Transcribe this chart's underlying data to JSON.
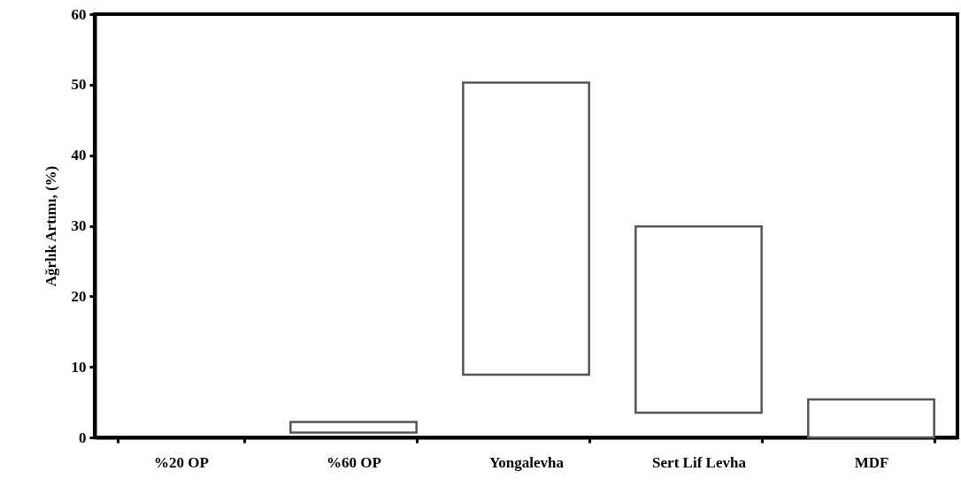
{
  "chart_data": {
    "type": "bar",
    "ylabel": "Ağrlık Artımı, (%)",
    "categories": [
      "%20 OP",
      "%60 OP",
      "Yongalevha",
      "Sert Lif Levha",
      "MDF"
    ],
    "values": [
      null,
      1.5,
      41.4,
      26.4,
      5.4
    ],
    "base": [
      null,
      0.7,
      8.9,
      3.5,
      0
    ],
    "color": "#555555",
    "ylim": [
      0,
      60
    ],
    "yticks": [
      0,
      10,
      20,
      30,
      40,
      50,
      60
    ],
    "grid": false
  }
}
